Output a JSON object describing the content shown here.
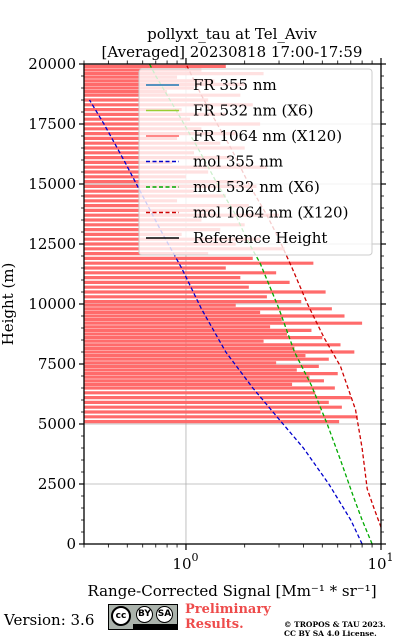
{
  "chart_data": {
    "type": "line",
    "title": "pollyxt_tau at Tel_Aviv",
    "subtitle": "[Averaged] 20230818 17:00-17:59",
    "xlabel": "Range-Corrected Signal [Mm⁻¹ * sr⁻¹]",
    "ylabel": "Height (m)",
    "xscale": "log",
    "xlim": [
      0.3,
      10
    ],
    "ylim": [
      0,
      20000
    ],
    "x_ticks": [
      {
        "value": 1,
        "label": "10",
        "exp": "0"
      },
      {
        "value": 10,
        "label": "10",
        "exp": "1"
      }
    ],
    "y_ticks": [
      0,
      2500,
      5000,
      7500,
      10000,
      12500,
      15000,
      17500,
      20000
    ],
    "grid": true,
    "legend_position": "top-right",
    "series": [
      {
        "name": "FR 355 nm",
        "color": "#1f77b4",
        "style": "solid",
        "points": []
      },
      {
        "name": "FR 532 nm (X6)",
        "color": "#9acd32",
        "style": "solid",
        "points": []
      },
      {
        "name": "FR 1064 nm (X120)",
        "color": "#ff6464",
        "style": "solid",
        "points": []
      },
      {
        "name": "mol 355 nm",
        "color": "#0000cc",
        "style": "dashed",
        "points": [
          [
            8.0,
            0
          ],
          [
            7.0,
            1000
          ],
          [
            5.4,
            2500
          ],
          [
            4.0,
            4000
          ],
          [
            3.0,
            5200
          ],
          [
            2.2,
            6500
          ],
          [
            1.6,
            8000
          ],
          [
            1.2,
            9800
          ],
          [
            0.95,
            11500
          ],
          [
            0.75,
            13000
          ],
          [
            0.6,
            14500
          ],
          [
            0.48,
            16000
          ],
          [
            0.38,
            17500
          ],
          [
            0.32,
            18500
          ]
        ]
      },
      {
        "name": "mol 532 nm (X6)",
        "color": "#00aa00",
        "style": "dashed",
        "points": [
          [
            9.0,
            0
          ],
          [
            8.0,
            1000
          ],
          [
            7.2,
            2000
          ],
          [
            6.2,
            3500
          ],
          [
            5.3,
            5000
          ],
          [
            4.4,
            6600
          ],
          [
            3.6,
            8000
          ],
          [
            3.0,
            9800
          ],
          [
            2.4,
            11700
          ],
          [
            2.05,
            12700
          ],
          [
            1.8,
            13700
          ],
          [
            1.45,
            15000
          ],
          [
            1.15,
            16500
          ],
          [
            0.9,
            18000
          ],
          [
            0.7,
            19500
          ],
          [
            0.65,
            20000
          ]
        ]
      },
      {
        "name": "mol 1064 nm (X120)",
        "color": "#cc0000",
        "style": "dashed",
        "points": [
          [
            10.0,
            700
          ],
          [
            9.2,
            1500
          ],
          [
            8.5,
            2300
          ],
          [
            8.0,
            4000
          ],
          [
            7.4,
            5600
          ],
          [
            6.2,
            7400
          ],
          [
            5.1,
            8600
          ],
          [
            4.2,
            10000
          ],
          [
            3.5,
            11500
          ],
          [
            3.0,
            12700
          ],
          [
            2.6,
            13700
          ],
          [
            2.1,
            15000
          ],
          [
            1.7,
            16500
          ],
          [
            1.4,
            17700
          ],
          [
            1.2,
            18700
          ],
          [
            1.0,
            20000
          ]
        ]
      },
      {
        "name": "Reference Height",
        "color": "#000000",
        "style": "solid",
        "points": []
      }
    ],
    "fr1064_streaks": [
      [
        19900,
        1.6
      ],
      [
        19750,
        1.2
      ],
      [
        19600,
        2.5
      ],
      [
        19450,
        0.9
      ],
      [
        19300,
        1.4
      ],
      [
        19150,
        2.0
      ],
      [
        19000,
        1.1
      ],
      [
        18850,
        0.8
      ],
      [
        18700,
        1.9
      ],
      [
        18500,
        1.3
      ],
      [
        18300,
        2.2
      ],
      [
        18100,
        0.95
      ],
      [
        17900,
        1.6
      ],
      [
        17700,
        1.05
      ],
      [
        17500,
        2.4
      ],
      [
        17300,
        1.2
      ],
      [
        17100,
        1.8
      ],
      [
        16900,
        0.9
      ],
      [
        16700,
        1.5
      ],
      [
        16500,
        2.0
      ],
      [
        16300,
        1.1
      ],
      [
        16100,
        1.7
      ],
      [
        15900,
        0.85
      ],
      [
        15700,
        2.6
      ],
      [
        15500,
        1.3
      ],
      [
        15300,
        1.0
      ],
      [
        15100,
        1.9
      ],
      [
        14900,
        2.3
      ],
      [
        14700,
        1.1
      ],
      [
        14500,
        1.6
      ],
      [
        14300,
        0.9
      ],
      [
        14100,
        2.1
      ],
      [
        13900,
        1.4
      ],
      [
        13700,
        3.0
      ],
      [
        13500,
        1.2
      ],
      [
        13300,
        2.0
      ],
      [
        13100,
        1.5
      ],
      [
        12900,
        0.95
      ],
      [
        12700,
        2.4
      ],
      [
        12500,
        1.8
      ],
      [
        12300,
        3.2
      ],
      [
        12100,
        1.3
      ],
      [
        11900,
        2.2
      ],
      [
        11700,
        4.5
      ],
      [
        11500,
        1.6
      ],
      [
        11300,
        2.9
      ],
      [
        11100,
        1.9
      ],
      [
        10900,
        3.4
      ],
      [
        10700,
        2.1
      ],
      [
        10500,
        5.2
      ],
      [
        10300,
        2.6
      ],
      [
        10100,
        3.9
      ],
      [
        9950,
        1.8
      ],
      [
        9800,
        5.6
      ],
      [
        9650,
        2.4
      ],
      [
        9500,
        6.5
      ],
      [
        9350,
        3.1
      ],
      [
        9200,
        8.0
      ],
      [
        9050,
        2.7
      ],
      [
        8900,
        4.4
      ],
      [
        8750,
        3.3
      ],
      [
        8600,
        5.0
      ],
      [
        8450,
        2.5
      ],
      [
        8300,
        6.2
      ],
      [
        8150,
        3.6
      ],
      [
        8000,
        7.3
      ],
      [
        7850,
        4.1
      ],
      [
        7700,
        5.4
      ],
      [
        7550,
        2.9
      ],
      [
        7400,
        4.8
      ],
      [
        7250,
        3.7
      ],
      [
        7100,
        6.0
      ],
      [
        6950,
        4.3
      ],
      [
        6800,
        5.1
      ],
      [
        6650,
        3.5
      ],
      [
        6500,
        5.8
      ],
      [
        6300,
        4.6
      ],
      [
        6100,
        7.0
      ],
      [
        5900,
        5.4
      ],
      [
        5700,
        6.3
      ],
      [
        5500,
        4.9
      ],
      [
        5300,
        7.6
      ],
      [
        5100,
        6.1
      ]
    ]
  },
  "footer": {
    "version_label": "Version: 3.6",
    "cc_label": "cc",
    "by_label": "BY",
    "sa_label": "SA",
    "preliminary_line1": "Preliminary",
    "preliminary_line2": "Results.",
    "copyright_line1": "© TROPOS & TAU 2023.",
    "copyright_line2": "CC BY SA 4.0 License."
  }
}
